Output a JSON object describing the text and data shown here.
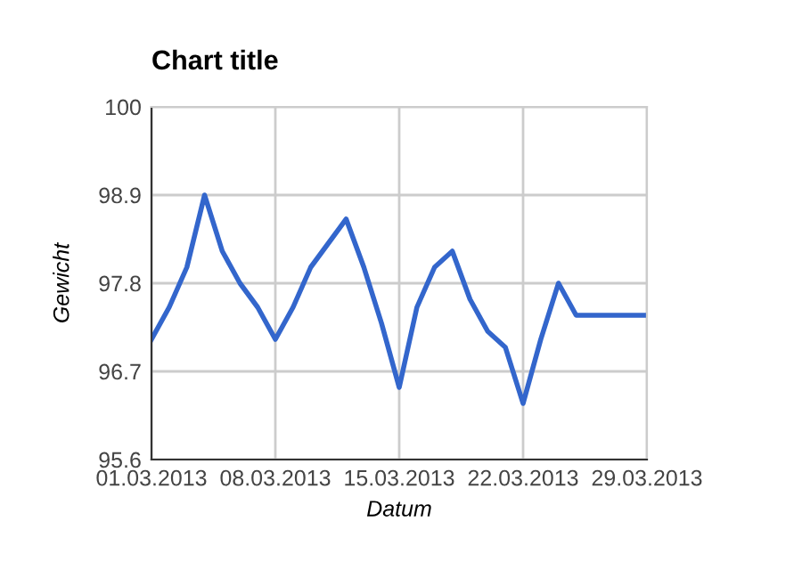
{
  "chart_data": {
    "type": "line",
    "title": "Chart title",
    "xlabel": "Datum",
    "ylabel": "Gewicht",
    "x": [
      "2013-03-01",
      "2013-03-02",
      "2013-03-03",
      "2013-03-04",
      "2013-03-05",
      "2013-03-06",
      "2013-03-07",
      "2013-03-08",
      "2013-03-09",
      "2013-03-10",
      "2013-03-11",
      "2013-03-12",
      "2013-03-13",
      "2013-03-14",
      "2013-03-15",
      "2013-03-16",
      "2013-03-17",
      "2013-03-18",
      "2013-03-19",
      "2013-03-20",
      "2013-03-21",
      "2013-03-22",
      "2013-03-23",
      "2013-03-24",
      "2013-03-25",
      "2013-03-26",
      "2013-03-27",
      "2013-03-28",
      "2013-03-29"
    ],
    "series": [
      {
        "color": "#3366cc",
        "values": [
          97.1,
          97.5,
          98.0,
          98.9,
          98.2,
          97.8,
          97.5,
          97.1,
          97.5,
          98.0,
          98.3,
          98.6,
          98.0,
          97.3,
          96.5,
          97.5,
          98.0,
          98.2,
          97.6,
          97.2,
          97.0,
          96.3,
          97.1,
          97.8,
          97.4,
          97.4,
          97.4,
          97.4,
          97.4
        ]
      }
    ],
    "xlim": [
      "2013-03-01",
      "2013-03-29"
    ],
    "xticks": [
      {
        "value": "2013-03-01",
        "label": "01.03.2013"
      },
      {
        "value": "2013-03-08",
        "label": "08.03.2013"
      },
      {
        "value": "2013-03-15",
        "label": "15.03.2013"
      },
      {
        "value": "2013-03-22",
        "label": "22.03.2013"
      },
      {
        "value": "2013-03-29",
        "label": "29.03.2013"
      }
    ],
    "ylim": [
      95.6,
      100
    ],
    "yticks": [
      95.6,
      96.7,
      97.8,
      98.9,
      100
    ],
    "grid": true,
    "marker": "none",
    "line_style": "solid"
  }
}
